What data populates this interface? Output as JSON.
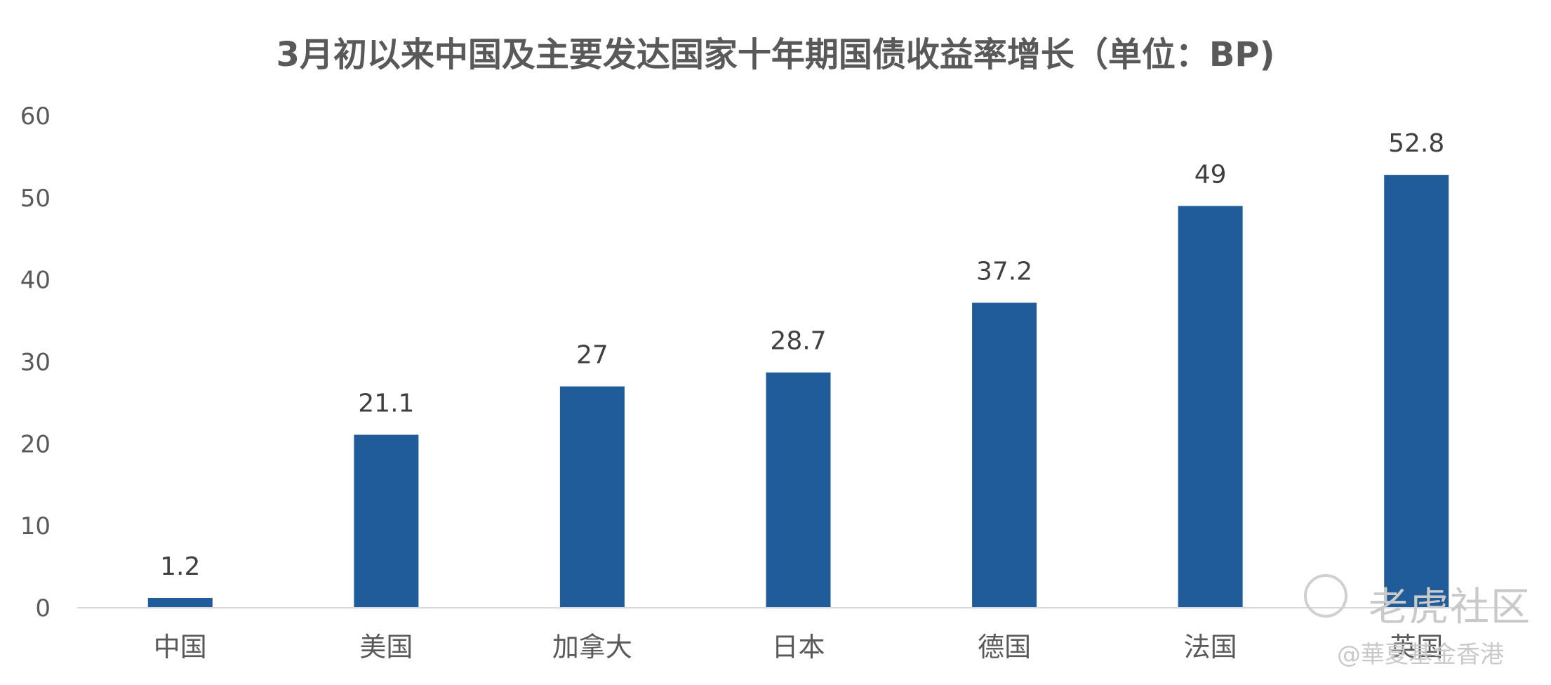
{
  "chart_data": {
    "type": "bar",
    "title": "3月初以来中国及主要发达国家十年期国债收益率增长（单位：BP)",
    "categories": [
      "中国",
      "美国",
      "加拿大",
      "日本",
      "德国",
      "法国",
      "英国"
    ],
    "values": [
      1.2,
      21.1,
      27,
      28.7,
      37.2,
      49,
      52.8
    ],
    "data_labels": [
      "1.2",
      "21.1",
      "27",
      "28.7",
      "37.2",
      "49",
      "52.8"
    ],
    "ylim": [
      0,
      60
    ],
    "yticks": [
      0,
      10,
      20,
      30,
      40,
      50,
      60
    ],
    "xlabel": "",
    "ylabel": "",
    "grid": false,
    "bar_color": "#1f5c99"
  },
  "watermark": {
    "main": "老虎社区",
    "sub": "@華夏基金香港"
  },
  "colors": {
    "axis": "#d9d9d9",
    "text": "#595959"
  }
}
